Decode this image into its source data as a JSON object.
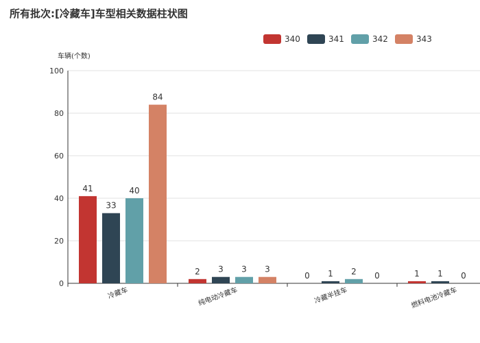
{
  "chart_data": {
    "type": "bar",
    "title": "所有批次:[冷藏车]车型相关数据柱状图",
    "xlabel": "",
    "ylabel": "车辆(个数)",
    "ylim": [
      0,
      100
    ],
    "yticks": [
      0,
      20,
      40,
      60,
      80,
      100
    ],
    "grid": true,
    "legend_position": "top-right",
    "categories": [
      "冷藏车",
      "纯电动冷藏车",
      "冷藏半挂车",
      "燃料电池冷藏车"
    ],
    "series": [
      {
        "name": "340",
        "color": "#c23531",
        "values": [
          41,
          2,
          0,
          1
        ]
      },
      {
        "name": "341",
        "color": "#2f4554",
        "values": [
          33,
          3,
          1,
          1
        ]
      },
      {
        "name": "342",
        "color": "#61a0a8",
        "values": [
          40,
          3,
          2,
          0
        ]
      },
      {
        "name": "343",
        "color": "#d48265",
        "values": [
          84,
          3,
          0,
          null
        ]
      }
    ]
  }
}
